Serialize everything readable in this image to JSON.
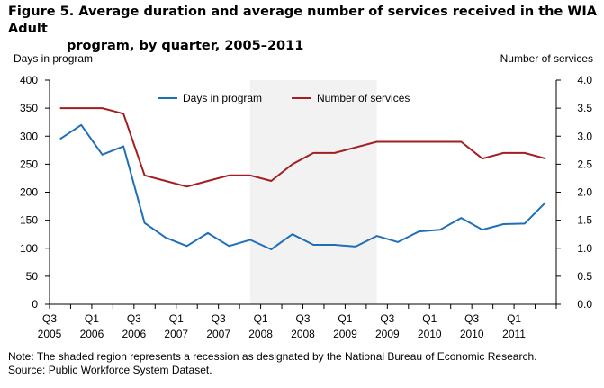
{
  "figure": {
    "title_line1": "Figure 5. Average duration and average number of services received in the WIA Adult",
    "title_line2": "program, by quarter, 2005–2011",
    "note": "Note: The shaded region represents a recession as designated by the National Bureau of Economic Research.",
    "source": "Source: Public Workforce System Dataset."
  },
  "chart_data": {
    "type": "line",
    "ylabel": "Days in program",
    "y2label": "Number of services",
    "ylim": [
      0,
      400
    ],
    "y2lim": [
      0,
      4.0
    ],
    "yticks": [
      "0",
      "50",
      "100",
      "150",
      "200",
      "250",
      "300",
      "350",
      "400"
    ],
    "y2ticks": [
      "0.0",
      "0.5",
      "1.0",
      "1.5",
      "2.0",
      "2.5",
      "3.0",
      "3.5",
      "4.0"
    ],
    "x": [
      "Q3 2005",
      "Q4 2005",
      "Q1 2006",
      "Q2 2006",
      "Q3 2006",
      "Q4 2006",
      "Q1 2007",
      "Q2 2007",
      "Q3 2007",
      "Q4 2007",
      "Q1 2008",
      "Q2 2008",
      "Q3 2008",
      "Q4 2008",
      "Q1 2009",
      "Q2 2009",
      "Q3 2009",
      "Q4 2009",
      "Q1 2010",
      "Q2 2010",
      "Q3 2010",
      "Q4 2010",
      "Q1 2011",
      "Q2 2011"
    ],
    "xticks": [
      {
        "q": "Q3",
        "year": "2005",
        "index": 0
      },
      {
        "q": "Q1",
        "year": "2006",
        "index": 2
      },
      {
        "q": "Q3",
        "year": "2006",
        "index": 4
      },
      {
        "q": "Q1",
        "year": "2007",
        "index": 6
      },
      {
        "q": "Q3",
        "year": "2007",
        "index": 8
      },
      {
        "q": "Q1",
        "year": "2008",
        "index": 10
      },
      {
        "q": "Q3",
        "year": "2008",
        "index": 12
      },
      {
        "q": "Q1",
        "year": "2009",
        "index": 14
      },
      {
        "q": "Q3",
        "year": "2009",
        "index": 16
      },
      {
        "q": "Q1",
        "year": "2010",
        "index": 18
      },
      {
        "q": "Q3",
        "year": "2010",
        "index": 20
      },
      {
        "q": "Q1",
        "year": "2011",
        "index": 22
      }
    ],
    "recession": [
      "Q4 2007",
      "Q2 2009"
    ],
    "legend_position": "top-center",
    "series": [
      {
        "name": "Days in program",
        "axis": "left",
        "color": "#1f6fb8",
        "values": [
          295,
          320,
          267,
          282,
          145,
          119,
          104,
          127,
          104,
          115,
          98,
          125,
          106,
          106,
          103,
          122,
          111,
          130,
          133,
          154,
          133,
          143,
          144,
          182
        ]
      },
      {
        "name": "Number of services",
        "axis": "right",
        "color": "#a31e22",
        "values": [
          3.5,
          3.5,
          3.5,
          3.4,
          2.3,
          2.2,
          2.1,
          2.2,
          2.3,
          2.3,
          2.2,
          2.5,
          2.7,
          2.7,
          2.8,
          2.9,
          2.9,
          2.9,
          2.9,
          2.9,
          2.6,
          2.7,
          2.7,
          2.6
        ]
      }
    ]
  }
}
